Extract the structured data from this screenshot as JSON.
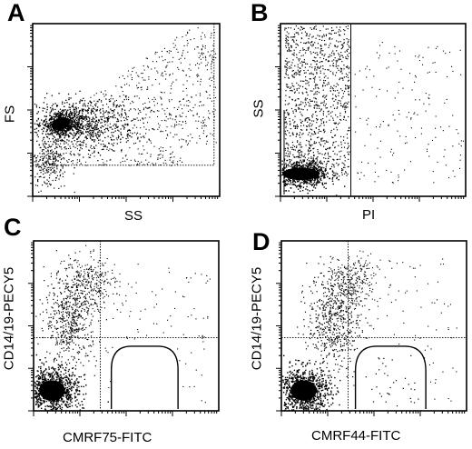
{
  "figure": {
    "panels": [
      {
        "letter": "A",
        "xlabel": "SS",
        "ylabel": "FS"
      },
      {
        "letter": "B",
        "xlabel": "PI",
        "ylabel": "SS"
      },
      {
        "letter": "C",
        "xlabel": "CMRF75-FITC",
        "ylabel": "CD14/19-PECY5"
      },
      {
        "letter": "D",
        "xlabel": "CMRF44-FITC",
        "ylabel": "CD14/19-PECY5"
      }
    ]
  },
  "chart_data": [
    {
      "type": "scatter",
      "panel": "A",
      "xlabel": "SS",
      "ylabel": "FS",
      "scale": "log tick marks, unlabeled",
      "populations": [
        {
          "name": "dense cluster",
          "center": [
            0.15,
            0.42
          ],
          "density": "high"
        },
        {
          "name": "diffuse spread",
          "x_range": [
            0.2,
            0.95
          ],
          "y_range": [
            0.2,
            0.95
          ],
          "density": "medium"
        }
      ],
      "gate": {
        "shape": "rectangle",
        "x_range": [
          0.0,
          0.97
        ],
        "y_range": [
          0.18,
          1.0
        ]
      }
    },
    {
      "type": "scatter",
      "panel": "B",
      "xlabel": "PI",
      "ylabel": "SS",
      "scale": "log tick marks, unlabeled",
      "populations": [
        {
          "name": "PI-negative cluster",
          "center": [
            0.12,
            0.13
          ],
          "density": "high"
        },
        {
          "name": "PI-positive scatter",
          "x_range": [
            0.4,
            1.0
          ],
          "y_range": [
            0.1,
            0.9
          ],
          "density": "low"
        }
      ],
      "gate": {
        "shape": "vertical line",
        "x": 0.38
      }
    },
    {
      "type": "scatter",
      "panel": "C",
      "xlabel": "CMRF75-FITC",
      "ylabel": "CD14/19-PECY5",
      "scale": "log tick marks, unlabeled",
      "quadrant_divider": {
        "x": 0.36,
        "y": 0.43
      },
      "populations": [
        {
          "name": "double negative",
          "center": [
            0.1,
            0.12
          ],
          "density": "high"
        },
        {
          "name": "CD14/19 positive arm",
          "x_range": [
            0.05,
            0.3
          ],
          "y_range": [
            0.3,
            0.95
          ],
          "density": "medium"
        }
      ],
      "gate": {
        "shape": "rounded region",
        "x_range": [
          0.42,
          0.78
        ],
        "y_range": [
          0.0,
          0.38
        ]
      }
    },
    {
      "type": "scatter",
      "panel": "D",
      "xlabel": "CMRF44-FITC",
      "ylabel": "CD14/19-PECY5",
      "scale": "log tick marks, unlabeled",
      "quadrant_divider": {
        "x": 0.36,
        "y": 0.43
      },
      "populations": [
        {
          "name": "double negative",
          "center": [
            0.12,
            0.12
          ],
          "density": "high"
        },
        {
          "name": "CD14/19 positive arm",
          "x_range": [
            0.15,
            0.45
          ],
          "y_range": [
            0.3,
            0.95
          ],
          "density": "medium"
        },
        {
          "name": "CMRF44 positive events",
          "x_range": [
            0.4,
            0.9
          ],
          "y_range": [
            0.05,
            0.4
          ],
          "density": "low"
        }
      ],
      "gate": {
        "shape": "rounded region",
        "x_range": [
          0.4,
          0.78
        ],
        "y_range": [
          0.0,
          0.38
        ]
      }
    }
  ]
}
